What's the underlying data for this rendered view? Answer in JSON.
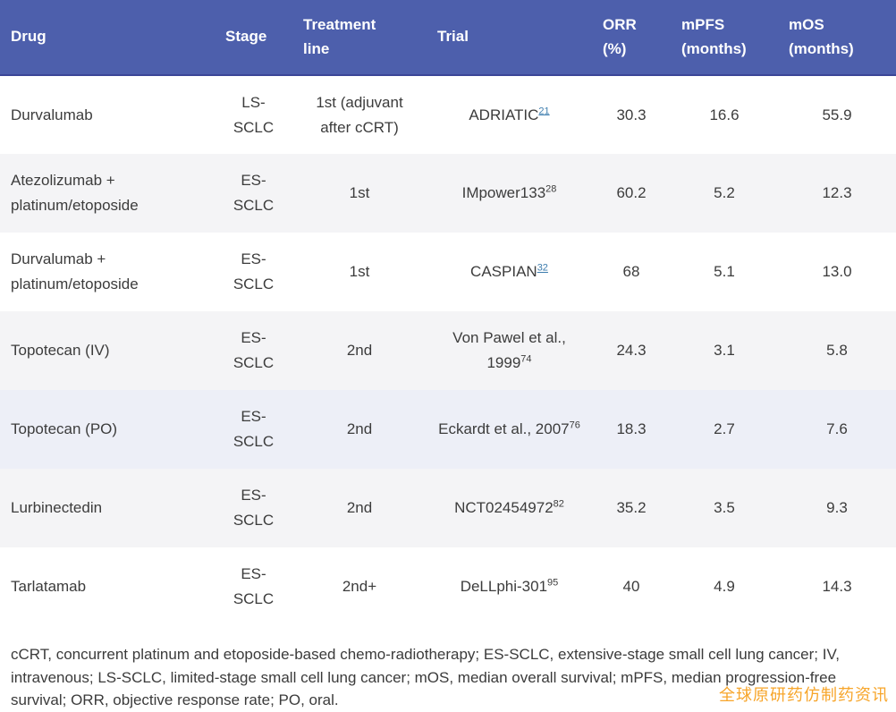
{
  "table": {
    "columns": [
      {
        "line1": "Drug"
      },
      {
        "line1": "Stage"
      },
      {
        "line1": "Treatment",
        "line2": "line"
      },
      {
        "line1": "Trial"
      },
      {
        "line1": "ORR",
        "line2": "(%)"
      },
      {
        "line1": "mPFS",
        "line2": "(months)"
      },
      {
        "line1": "mOS",
        "line2": "(months)"
      }
    ],
    "rows": [
      {
        "drug": "Durvalumab",
        "stage": "LS-SCLC",
        "treatment_line": "1st (adjuvant after cCRT)",
        "trial": "ADRIATIC",
        "trial_ref": "21",
        "trial_ref_is_link": true,
        "orr": "30.3",
        "mpfs": "16.6",
        "mos": "55.9"
      },
      {
        "drug": "Atezolizumab + platinum/etoposide",
        "stage": "ES-SCLC",
        "treatment_line": "1st",
        "trial": "IMpower133",
        "trial_ref": "28",
        "trial_ref_is_link": false,
        "orr": "60.2",
        "mpfs": "5.2",
        "mos": "12.3"
      },
      {
        "drug": "Durvalumab + platinum/etoposide",
        "stage": "ES-SCLC",
        "treatment_line": "1st",
        "trial": "CASPIAN",
        "trial_ref": "32",
        "trial_ref_is_link": true,
        "orr": "68",
        "mpfs": "5.1",
        "mos": "13.0"
      },
      {
        "drug": "Topotecan (IV)",
        "stage": "ES-SCLC",
        "treatment_line": "2nd",
        "trial": "Von Pawel et al., 1999",
        "trial_ref": "74",
        "trial_ref_is_link": false,
        "orr": "24.3",
        "mpfs": "3.1",
        "mos": "5.8"
      },
      {
        "drug": "Topotecan (PO)",
        "stage": "ES-SCLC",
        "treatment_line": "2nd",
        "trial": "Eckardt et al., 2007",
        "trial_ref": "76",
        "trial_ref_is_link": false,
        "orr": "18.3",
        "mpfs": "2.7",
        "mos": "7.6"
      },
      {
        "drug": "Lurbinectedin",
        "stage": "ES-SCLC",
        "treatment_line": "2nd",
        "trial": "NCT02454972",
        "trial_ref": "82",
        "trial_ref_is_link": false,
        "orr": "35.2",
        "mpfs": "3.5",
        "mos": "9.3"
      },
      {
        "drug": "Tarlatamab",
        "stage": "ES-SCLC",
        "treatment_line": "2nd+",
        "trial": "DeLLphi-301",
        "trial_ref": "95",
        "trial_ref_is_link": false,
        "orr": "40",
        "mpfs": "4.9",
        "mos": "14.3"
      }
    ]
  },
  "footnote": "cCRT, concurrent platinum and etoposide-based chemo-radiotherapy; ES-SCLC, extensive-stage small cell lung cancer; IV, intravenous; LS-SCLC, limited-stage small cell lung cancer; mOS, median overall survival; mPFS, median progression-free survival; ORR, objective response rate; PO, oral.",
  "watermark": {
    "text": "全球原研药仿制药资讯",
    "color": "#f7a52a"
  },
  "colors": {
    "header_bg": "#4d5fac",
    "header_border": "#3b4697",
    "row_shade": "#f4f4f6",
    "row_highlight": "#edeff7",
    "reference_link": "#3d7dae",
    "body_text": "#3c3c3c"
  }
}
